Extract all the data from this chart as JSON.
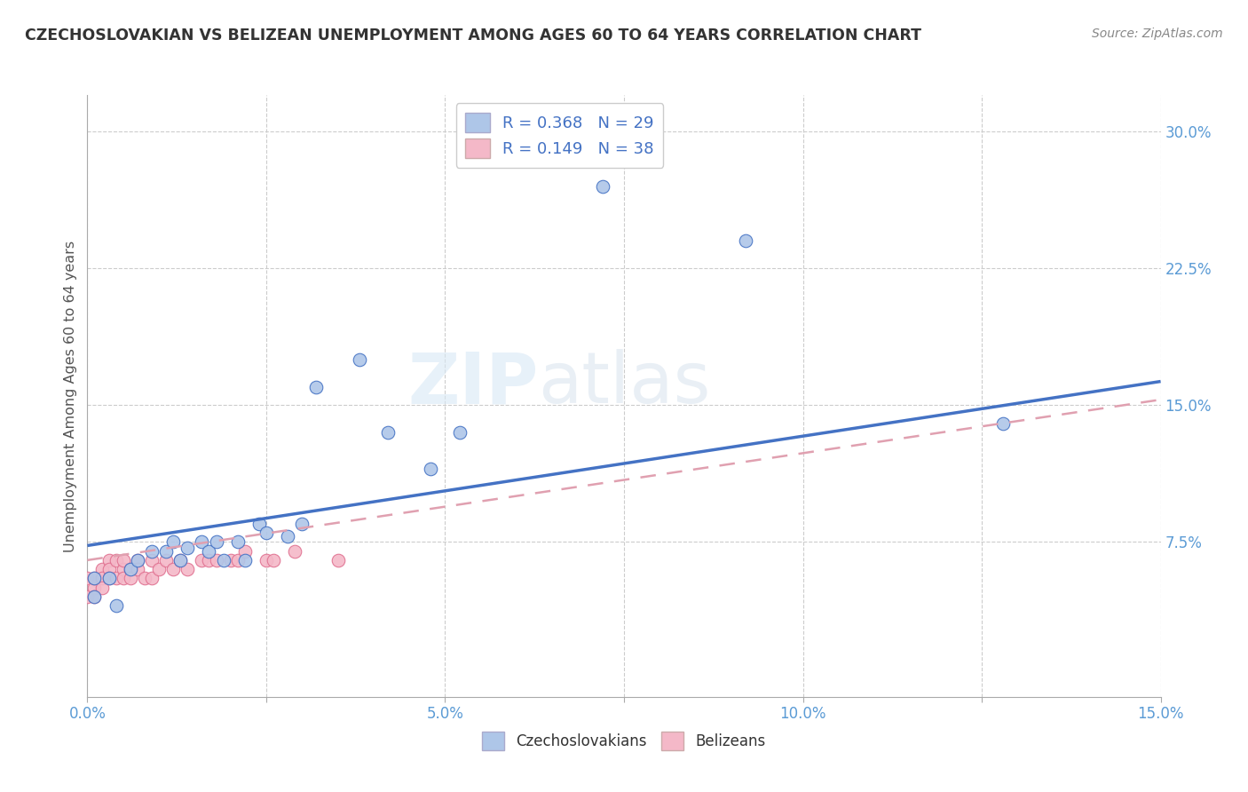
{
  "title": "CZECHOSLOVAKIAN VS BELIZEAN UNEMPLOYMENT AMONG AGES 60 TO 64 YEARS CORRELATION CHART",
  "source": "Source: ZipAtlas.com",
  "ylabel": "Unemployment Among Ages 60 to 64 years",
  "xlim": [
    0.0,
    0.15
  ],
  "ylim": [
    -0.01,
    0.32
  ],
  "xticks": [
    0.0,
    0.025,
    0.05,
    0.075,
    0.1,
    0.125,
    0.15
  ],
  "xticklabels": [
    "0.0%",
    "",
    "5.0%",
    "",
    "10.0%",
    "",
    "15.0%"
  ],
  "yticks_right": [
    0.075,
    0.15,
    0.225,
    0.3
  ],
  "ytick_labels_right": [
    "7.5%",
    "15.0%",
    "22.5%",
    "30.0%"
  ],
  "czech_color": "#aec6e8",
  "czech_color_line": "#4472c4",
  "belize_color": "#f4b8c8",
  "belize_color_line": "#e07090",
  "belize_line_color": "#e0a0b0",
  "R_czech": 0.368,
  "N_czech": 29,
  "R_belize": 0.149,
  "N_belize": 38,
  "watermark_zip": "ZIP",
  "watermark_atlas": "atlas",
  "czech_scatter_x": [
    0.001,
    0.001,
    0.003,
    0.004,
    0.006,
    0.007,
    0.009,
    0.011,
    0.012,
    0.013,
    0.014,
    0.016,
    0.017,
    0.018,
    0.019,
    0.021,
    0.022,
    0.024,
    0.025,
    0.028,
    0.03,
    0.032,
    0.038,
    0.042,
    0.048,
    0.052,
    0.072,
    0.092,
    0.128
  ],
  "czech_scatter_y": [
    0.055,
    0.045,
    0.055,
    0.04,
    0.06,
    0.065,
    0.07,
    0.07,
    0.075,
    0.065,
    0.072,
    0.075,
    0.07,
    0.075,
    0.065,
    0.075,
    0.065,
    0.085,
    0.08,
    0.078,
    0.085,
    0.16,
    0.175,
    0.135,
    0.115,
    0.135,
    0.27,
    0.24,
    0.14
  ],
  "belize_scatter_x": [
    0.0,
    0.0,
    0.001,
    0.001,
    0.001,
    0.002,
    0.002,
    0.002,
    0.003,
    0.003,
    0.003,
    0.004,
    0.004,
    0.005,
    0.005,
    0.005,
    0.006,
    0.006,
    0.007,
    0.007,
    0.008,
    0.009,
    0.009,
    0.01,
    0.011,
    0.012,
    0.013,
    0.014,
    0.016,
    0.017,
    0.018,
    0.02,
    0.021,
    0.022,
    0.025,
    0.026,
    0.029,
    0.035
  ],
  "belize_scatter_y": [
    0.055,
    0.045,
    0.05,
    0.055,
    0.045,
    0.06,
    0.055,
    0.05,
    0.065,
    0.06,
    0.055,
    0.065,
    0.055,
    0.06,
    0.065,
    0.055,
    0.06,
    0.055,
    0.065,
    0.06,
    0.055,
    0.065,
    0.055,
    0.06,
    0.065,
    0.06,
    0.065,
    0.06,
    0.065,
    0.065,
    0.065,
    0.065,
    0.065,
    0.07,
    0.065,
    0.065,
    0.07,
    0.065
  ],
  "background_color": "#ffffff",
  "grid_color": "#cccccc",
  "title_color": "#333333",
  "legend_label_color": "#4472c4",
  "tick_label_color": "#5b9bd5"
}
